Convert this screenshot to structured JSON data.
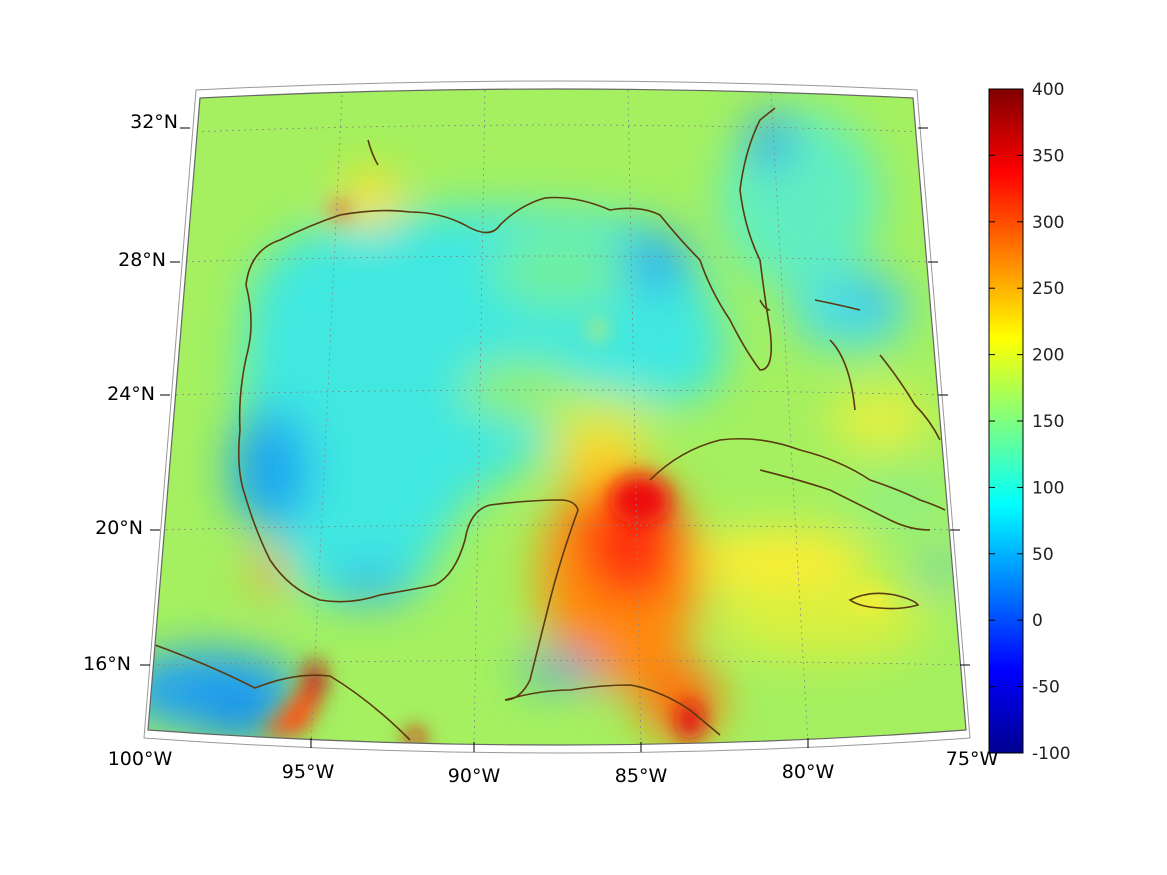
{
  "map": {
    "projection": "conic",
    "extent": {
      "lon": [
        -100,
        -75
      ],
      "lat": [
        14,
        33
      ]
    },
    "grid": true,
    "lat_labels": [
      "32°N",
      "28°N",
      "24°N",
      "20°N",
      "16°N"
    ],
    "lon_labels": [
      "100°W",
      "95°W",
      "90°W",
      "85°W",
      "80°W",
      "75°W"
    ],
    "coastline_color": "#5a3a10",
    "colormap": "jet"
  },
  "colorbar": {
    "min": -100,
    "max": 400,
    "ticks": [
      "400",
      "350",
      "300",
      "250",
      "200",
      "150",
      "100",
      "50",
      "0",
      "-50",
      "-100"
    ],
    "position": "right"
  }
}
